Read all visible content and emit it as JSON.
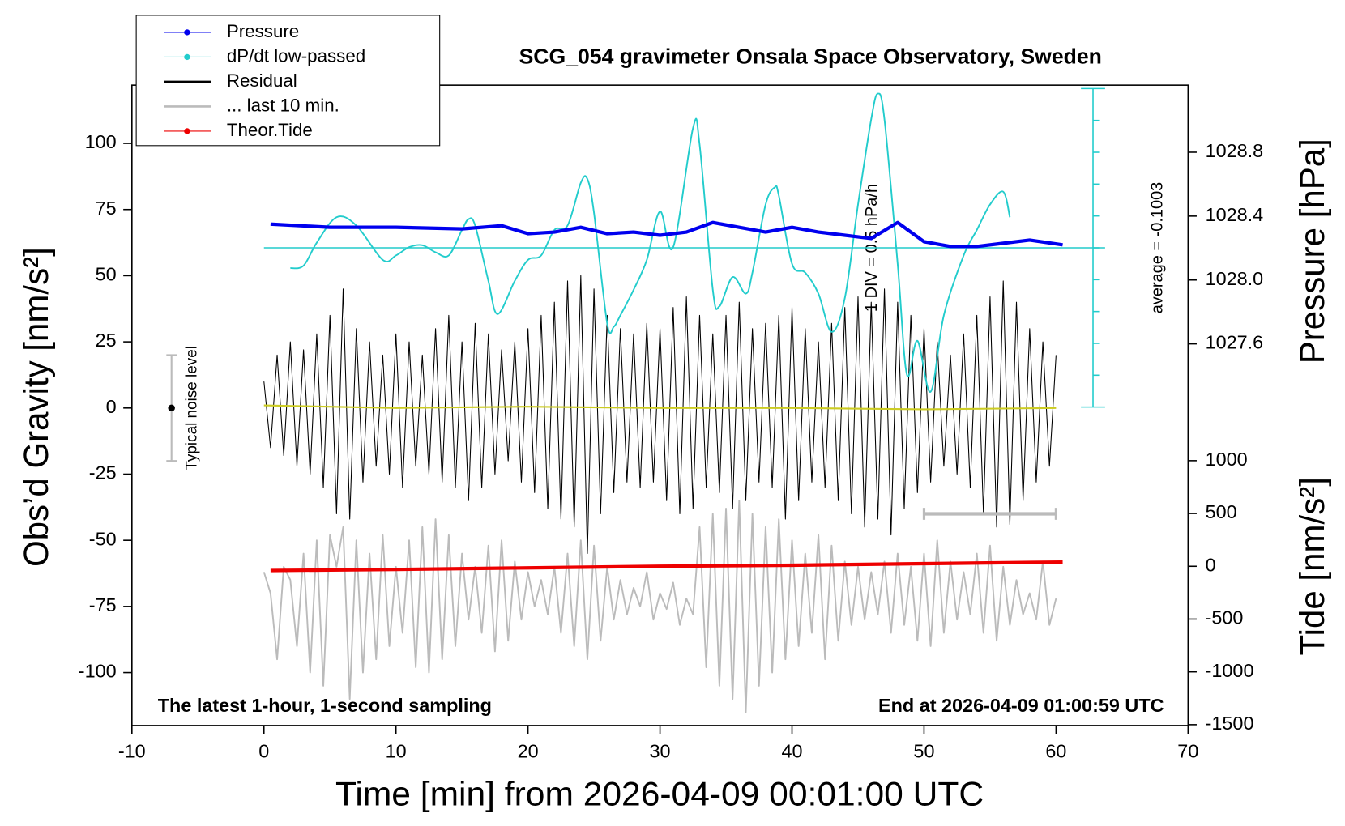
{
  "chart_data": {
    "type": "line",
    "title": "SCG_054 gravimeter Onsala Space Observatory, Sweden",
    "xlabel": "Time [min] from 2026-04-09 00:01:00 UTC",
    "ylabel": "Obs’d Gravity [nm/s²]",
    "y2label": "Pressure [hPa]",
    "y4label": "Tide [nm/s²]",
    "y3label": "1 DIV = 0.5 hPa/h",
    "y3average": {
      "value": -0.1003,
      "label": "average = -0.1003"
    },
    "annotations": [
      "The latest 1-hour, 1-second sampling",
      "End at 2026-04-09 01:00:59 UTC"
    ],
    "legend": "upper left",
    "xlim": [
      -10,
      70
    ],
    "xticks": [
      -10,
      0,
      10,
      20,
      30,
      40,
      50,
      60,
      70
    ],
    "ylim": [
      -120,
      122
    ],
    "yticks": [
      -100,
      -75,
      -50,
      -25,
      0,
      25,
      50,
      75,
      100
    ],
    "y2lim": [
      1025.21,
      1029.22
    ],
    "y2ticks": [
      1027.6,
      {
        "value": 1028,
        "label": "1028.0"
      },
      1028.4,
      1028.8
    ],
    "y3lim": [
      -2.6003,
      2.3997
    ],
    "y3ticks": [
      -2.6003,
      -2.1003,
      -1.6003,
      -1.1003,
      -0.6003,
      -0.1003,
      0.3997,
      0.8997,
      1.3997,
      1.8997,
      2.3997
    ],
    "y4lim": [
      -1508,
      4556
    ],
    "y4ticks": [
      -1500,
      -1000,
      -500,
      0,
      500,
      1000
    ],
    "noise_bar": {
      "label": "Typical noise level",
      "x": -7,
      "low": -20,
      "center": 0,
      "high": 20
    },
    "scale_bar": {
      "x": [
        50,
        60
      ],
      "y": -40
    },
    "x": [
      0,
      0.5,
      1,
      1.5,
      2,
      2.5,
      3,
      3.5,
      4,
      4.5,
      5,
      5.5,
      6,
      6.5,
      7,
      7.5,
      8,
      8.5,
      9,
      9.5,
      10,
      10.5,
      11,
      11.5,
      12,
      12.5,
      13,
      13.5,
      14,
      14.5,
      15,
      15.5,
      16,
      16.5,
      17,
      17.5,
      18,
      18.5,
      19,
      19.5,
      20,
      20.5,
      21,
      21.5,
      22,
      22.5,
      23,
      23.5,
      24,
      24.5,
      25,
      25.5,
      26,
      26.5,
      27,
      27.5,
      28,
      28.5,
      29,
      29.5,
      30,
      30.5,
      31,
      31.5,
      32,
      32.5,
      33,
      33.5,
      34,
      34.5,
      35,
      35.5,
      36,
      36.5,
      37,
      37.5,
      38,
      38.5,
      39,
      39.5,
      40,
      40.5,
      41,
      41.5,
      42,
      42.5,
      43,
      43.5,
      44,
      44.5,
      45,
      45.5,
      46,
      46.5,
      47,
      47.5,
      48,
      48.5,
      49,
      49.5,
      50,
      50.5,
      51,
      51.5,
      52,
      52.5,
      53,
      53.5,
      54,
      54.5,
      55,
      55.5,
      56,
      56.5,
      57,
      57.5,
      58,
      58.5,
      59,
      59.5,
      60
    ],
    "series": [
      {
        "name": "Pressure",
        "color": "#0000ee",
        "axis": "y2",
        "width": 4,
        "marker": true,
        "x": [
          0.5,
          5,
          10,
          15,
          18,
          20,
          22,
          24,
          26,
          28,
          30,
          32,
          34,
          36,
          38,
          40,
          42,
          44,
          46,
          48,
          50,
          52,
          54,
          56,
          58,
          60.5
        ],
        "values": [
          1028.35,
          1028.33,
          1028.33,
          1028.32,
          1028.34,
          1028.29,
          1028.3,
          1028.33,
          1028.29,
          1028.3,
          1028.28,
          1028.3,
          1028.36,
          1028.33,
          1028.3,
          1028.33,
          1028.3,
          1028.28,
          1028.26,
          1028.36,
          1028.24,
          1028.21,
          1028.21,
          1028.23,
          1028.25,
          1028.22
        ]
      },
      {
        "name": "dP/dt low-passed",
        "color": "#22cccc",
        "axis": "y3",
        "width": 1.8,
        "marker": true,
        "x": [
          2,
          3,
          4,
          5.5,
          7,
          9,
          10,
          11,
          12,
          13,
          14,
          15,
          15.5,
          16,
          17,
          17.7,
          19,
          20,
          21,
          22,
          23,
          24,
          24.5,
          25,
          26,
          26.5,
          27,
          28,
          29,
          30,
          31,
          32.5,
          33,
          34,
          34.5,
          35.5,
          36.5,
          37,
          38,
          38.7,
          39,
          40,
          41,
          42,
          43,
          44,
          45,
          46,
          46.5,
          47,
          48,
          48.7,
          49.5,
          50.5,
          51.5,
          53,
          54,
          55,
          56,
          56.5
        ],
        "values": [
          -0.42,
          -0.38,
          -0.02,
          0.38,
          0.25,
          -0.29,
          -0.22,
          -0.09,
          -0.06,
          -0.17,
          -0.22,
          0.18,
          0.35,
          0.25,
          -0.62,
          -1.14,
          -0.62,
          -0.29,
          -0.22,
          0.18,
          0.25,
          0.92,
          0.98,
          0.45,
          -1.29,
          -1.34,
          -1.16,
          -0.76,
          -0.29,
          0.47,
          -0.09,
          1.78,
          1.52,
          -0.76,
          -1.02,
          -0.56,
          -0.82,
          -0.49,
          0.58,
          0.85,
          0.72,
          -0.35,
          -0.49,
          -0.82,
          -1.42,
          -0.89,
          0.58,
          1.92,
          2.32,
          1.92,
          -0.35,
          -2.09,
          -1.56,
          -2.36,
          -1.16,
          -0.22,
          0.18,
          0.58,
          0.78,
          0.38
        ]
      },
      {
        "name": "Residual",
        "color": "#000000",
        "width": 1,
        "values": [
          10,
          -15,
          20,
          -18,
          25,
          -22,
          22,
          -25,
          28,
          -30,
          35,
          -40,
          45,
          -42,
          30,
          -28,
          25,
          -22,
          20,
          -25,
          28,
          -30,
          25,
          -22,
          20,
          -25,
          30,
          -28,
          35,
          -30,
          25,
          -35,
          32,
          -30,
          28,
          -25,
          22,
          -20,
          25,
          -28,
          30,
          -32,
          35,
          -38,
          40,
          -42,
          48,
          -45,
          50,
          -55,
          45,
          -40,
          35,
          -32,
          30,
          -28,
          28,
          -30,
          32,
          -28,
          30,
          -35,
          38,
          -40,
          42,
          -38,
          35,
          -30,
          28,
          -32,
          35,
          -38,
          40,
          -35,
          30,
          -28,
          32,
          -30,
          35,
          -42,
          38,
          -35,
          30,
          -28,
          25,
          -30,
          32,
          -35,
          38,
          -40,
          42,
          -45,
          40,
          -42,
          45,
          -48,
          40,
          -38,
          35,
          -32,
          30,
          -28,
          25,
          -22,
          20,
          -25,
          28,
          -30,
          35,
          -40,
          42,
          -45,
          48,
          -44,
          40,
          -35,
          30,
          -28,
          25,
          -22,
          20
        ]
      },
      {
        "name": "... last 10 min.",
        "color": "#bbbbbb",
        "width": 1.8,
        "values": [
          -62,
          -70,
          -95,
          -60,
          -65,
          -90,
          -55,
          -100,
          -50,
          -105,
          -48,
          -60,
          -45,
          -110,
          -50,
          -100,
          -55,
          -95,
          -48,
          -90,
          -60,
          -85,
          -50,
          -98,
          -45,
          -100,
          -42,
          -95,
          -48,
          -90,
          -55,
          -80,
          -60,
          -85,
          -52,
          -92,
          -50,
          -88,
          -58,
          -80,
          -62,
          -75,
          -65,
          -78,
          -60,
          -85,
          -55,
          -90,
          -50,
          -95,
          -52,
          -88,
          -60,
          -80,
          -65,
          -78,
          -68,
          -75,
          -62,
          -80,
          -70,
          -76,
          -66,
          -82,
          -72,
          -78,
          -45,
          -98,
          -40,
          -105,
          -38,
          -110,
          -35,
          -115,
          -40,
          -105,
          -45,
          -100,
          -42,
          -95,
          -50,
          -90,
          -55,
          -85,
          -48,
          -95,
          -52,
          -88,
          -58,
          -82,
          -60,
          -80,
          -62,
          -78,
          -58,
          -85,
          -55,
          -82,
          -60,
          -88,
          -55,
          -90,
          -50,
          -85,
          -58,
          -80,
          -62,
          -78,
          -55,
          -85,
          -52,
          -88,
          -60,
          -82,
          -65,
          -78,
          -70,
          -80,
          -58,
          -82,
          -72
        ]
      },
      {
        "name": "Theor.Tide",
        "color": "#ee0000",
        "axis": "y4",
        "width": 4,
        "marker": true,
        "x": [
          0.5,
          10,
          20,
          30,
          40,
          50,
          60.5
        ],
        "values": [
          -40,
          -30,
          -15,
          0,
          10,
          25,
          40
        ]
      },
      {
        "color": "#cccc22",
        "width": 2,
        "x": [
          0,
          10,
          20,
          30,
          40,
          50,
          60
        ],
        "values": [
          1,
          0,
          0.5,
          0,
          0,
          -0.5,
          0
        ]
      }
    ]
  }
}
